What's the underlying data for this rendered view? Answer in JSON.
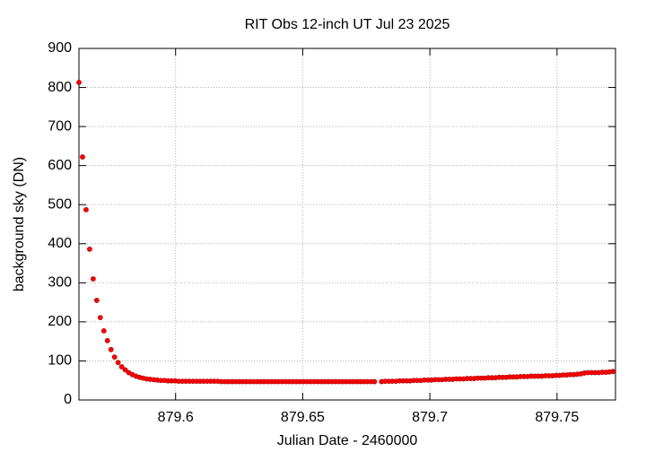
{
  "chart_data": {
    "type": "scatter",
    "title": "RIT Obs 12-inch UT Jul 23 2025",
    "x_label": "Julian Date - 2460000",
    "y_label": "background sky (DN)",
    "color": "#ff0000",
    "grid": true,
    "xlim": [
      879.562,
      879.773
    ],
    "ylim": [
      0,
      900
    ],
    "xticks": [
      879.6,
      879.65,
      879.7,
      879.75
    ],
    "yticks": [
      0,
      100,
      200,
      300,
      400,
      500,
      600,
      700,
      800,
      900
    ],
    "x": [
      879.562,
      879.5634,
      879.5648,
      879.5662,
      879.5676,
      879.569,
      879.5704,
      879.5718,
      879.5732,
      879.5746,
      879.576,
      879.5774,
      879.5788,
      879.5802,
      879.5816,
      879.583,
      879.5844,
      879.5858,
      879.5872,
      879.5886,
      879.59,
      879.5914,
      879.5928,
      879.5942,
      879.5956,
      879.597,
      879.5984,
      879.5998,
      879.6012,
      879.6026,
      879.604,
      879.6054,
      879.6068,
      879.6082,
      879.6096,
      879.611,
      879.6124,
      879.6138,
      879.6152,
      879.6166,
      879.618,
      879.6194,
      879.6208,
      879.6222,
      879.6236,
      879.625,
      879.6264,
      879.6278,
      879.6292,
      879.6306,
      879.632,
      879.6334,
      879.6348,
      879.6362,
      879.6376,
      879.639,
      879.6404,
      879.6418,
      879.6432,
      879.6446,
      879.646,
      879.6474,
      879.6488,
      879.6502,
      879.6516,
      879.653,
      879.6544,
      879.6558,
      879.6572,
      879.6586,
      879.66,
      879.6614,
      879.6628,
      879.6642,
      879.6656,
      879.667,
      879.6684,
      879.6698,
      879.6712,
      879.6726,
      879.674,
      879.6754,
      879.6768,
      879.6782,
      879.681,
      879.6824,
      879.6838,
      879.6852,
      879.6866,
      879.688,
      879.6894,
      879.6908,
      879.6922,
      879.6936,
      879.695,
      879.6964,
      879.6978,
      879.6992,
      879.7006,
      879.702,
      879.7034,
      879.7048,
      879.7062,
      879.7076,
      879.709,
      879.7104,
      879.7118,
      879.7132,
      879.7146,
      879.716,
      879.7174,
      879.7188,
      879.7202,
      879.7216,
      879.723,
      879.7244,
      879.7258,
      879.7272,
      879.7286,
      879.73,
      879.7314,
      879.7328,
      879.7342,
      879.7356,
      879.737,
      879.7384,
      879.7398,
      879.7412,
      879.7426,
      879.744,
      879.7454,
      879.7468,
      879.7482,
      879.7496,
      879.751,
      879.7524,
      879.7538,
      879.7552,
      879.7566,
      879.758,
      879.7594,
      879.7608,
      879.7622,
      879.7636,
      879.765,
      879.7664,
      879.7678,
      879.7692,
      879.7706,
      879.772
    ],
    "values": [
      813,
      622,
      487,
      386,
      310,
      255,
      211,
      177,
      152,
      129,
      110,
      96,
      85,
      77,
      70,
      65,
      61,
      58,
      56,
      54,
      53,
      52,
      51,
      50,
      50,
      49,
      49,
      49,
      48,
      48,
      48,
      48,
      48,
      48,
      48,
      48,
      48,
      48,
      48,
      48,
      47,
      47,
      47,
      47,
      47,
      47,
      47,
      47,
      47,
      47,
      47,
      47,
      47,
      47,
      47,
      47,
      47,
      47,
      47,
      47,
      47,
      47,
      47,
      47,
      47,
      47,
      47,
      47,
      47,
      47,
      47,
      47,
      47,
      47,
      47,
      47,
      47,
      47,
      47,
      47,
      47,
      47,
      47,
      47,
      47,
      48,
      48,
      48,
      48,
      49,
      49,
      49,
      49,
      50,
      50,
      50,
      51,
      51,
      51,
      52,
      52,
      52,
      53,
      53,
      53,
      54,
      54,
      54,
      55,
      55,
      55,
      56,
      56,
      56,
      57,
      57,
      57,
      58,
      58,
      58,
      59,
      59,
      59,
      60,
      60,
      60,
      61,
      61,
      61,
      61,
      62,
      62,
      62,
      63,
      63,
      64,
      64,
      65,
      65,
      66,
      67,
      69,
      70,
      70,
      70,
      70,
      71,
      71,
      72,
      73
    ]
  }
}
